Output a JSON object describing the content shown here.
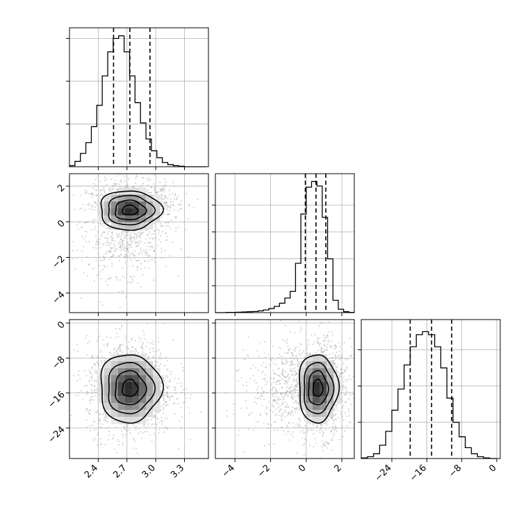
{
  "figure": {
    "background": "#ffffff",
    "grid": true,
    "grid_color": "#b0b0b0",
    "line_color": "#000000",
    "point_color": "#8c8c8c"
  },
  "chart_data": [
    {
      "type": "histogram",
      "panel": "p1-marginal",
      "xlim": [
        2.1,
        3.55
      ],
      "bins": [
        2.1,
        2.157,
        2.214,
        2.271,
        2.328,
        2.385,
        2.442,
        2.499,
        2.556,
        2.613,
        2.67,
        2.727,
        2.784,
        2.841,
        2.898,
        2.955,
        3.012,
        3.069,
        3.126,
        3.183,
        3.24,
        3.297,
        3.354,
        3.411,
        3.468,
        3.525
      ],
      "counts": [
        2,
        10,
        25,
        45,
        75,
        115,
        170,
        215,
        240,
        245,
        215,
        170,
        120,
        82,
        52,
        30,
        17,
        8,
        4,
        2,
        1,
        0,
        0,
        0,
        0
      ],
      "yticks": [
        80,
        160,
        240
      ],
      "ylim": [
        0,
        260
      ],
      "quantiles": [
        2.56,
        2.73,
        2.94
      ]
    },
    {
      "type": "histogram",
      "panel": "p2-marginal",
      "xlim": [
        -5.1,
        2.7
      ],
      "bins": [
        -5.1,
        -4.8,
        -4.5,
        -4.2,
        -3.9,
        -3.6,
        -3.3,
        -3.0,
        -2.7,
        -2.4,
        -2.1,
        -1.8,
        -1.5,
        -1.2,
        -0.9,
        -0.6,
        -0.3,
        0.0,
        0.3,
        0.6,
        0.9,
        1.2,
        1.5,
        1.8,
        2.1,
        2.4,
        2.7
      ],
      "counts": [
        0,
        0,
        1,
        1,
        2,
        3,
        4,
        5,
        8,
        12,
        18,
        28,
        42,
        65,
        95,
        220,
        440,
        560,
        585,
        565,
        425,
        240,
        55,
        15,
        4,
        1
      ],
      "yticks": [
        120,
        240,
        360,
        480
      ],
      "ylim": [
        0,
        620
      ],
      "quantiles": [
        -0.05,
        0.55,
        1.1
      ]
    },
    {
      "type": "histogram",
      "panel": "p3-marginal",
      "xlim": [
        -31,
        0.8
      ],
      "bins": [
        -31,
        -29.6,
        -28.2,
        -26.8,
        -25.4,
        -24.0,
        -22.6,
        -21.2,
        -19.8,
        -18.4,
        -17.0,
        -15.6,
        -14.2,
        -12.8,
        -11.4,
        -10.0,
        -8.6,
        -7.2,
        -5.8,
        -4.4,
        -3.0,
        -1.6,
        -0.2
      ],
      "counts": [
        1,
        3,
        8,
        22,
        45,
        80,
        115,
        155,
        185,
        205,
        210,
        205,
        185,
        150,
        100,
        60,
        36,
        18,
        8,
        3,
        1,
        0
      ],
      "yticks": [
        60,
        120,
        180
      ],
      "ylim": [
        0,
        230
      ],
      "quantiles": [
        -19.8,
        -14.9,
        -10.3
      ]
    },
    {
      "type": "scatter-contour",
      "panel": "p1-p2",
      "x": "p1",
      "y": "p2",
      "xlim": [
        2.1,
        3.55
      ],
      "ylim": [
        -5.1,
        2.7
      ],
      "center": [
        2.73,
        0.65
      ],
      "spread": [
        0.16,
        0.55
      ],
      "yticks": [
        2,
        0,
        -2,
        -4
      ],
      "ytick_labels": [
        "2",
        "0",
        "−2",
        "−4"
      ]
    },
    {
      "type": "scatter-contour",
      "panel": "p1-p3",
      "x": "p1",
      "y": "p3",
      "xlim": [
        2.1,
        3.55
      ],
      "ylim": [
        -31,
        0.8
      ],
      "center": [
        2.73,
        -14.9
      ],
      "spread": [
        0.16,
        3.9
      ],
      "xticks": [
        2.4,
        2.7,
        3.0,
        3.3
      ],
      "xtick_labels": [
        "2.4",
        "2.7",
        "3.0",
        "3.3"
      ],
      "yticks": [
        0,
        -8,
        -16,
        -24
      ],
      "ytick_labels": [
        "0",
        "−8",
        "−16",
        "−24"
      ]
    },
    {
      "type": "scatter-contour",
      "panel": "p2-p3",
      "x": "p2",
      "y": "p3",
      "xlim": [
        -5.1,
        2.7
      ],
      "ylim": [
        -31,
        0.8
      ],
      "center": [
        0.65,
        -14.9
      ],
      "spread": [
        0.55,
        3.9
      ],
      "xticks": [
        -4,
        -2,
        0,
        2
      ],
      "xtick_labels": [
        "−4",
        "−2",
        "0",
        "2"
      ]
    }
  ],
  "p3_xticks": [
    -24,
    -16,
    -8,
    0
  ],
  "p3_xtick_labels": [
    "−24",
    "−16",
    "−8",
    "0"
  ]
}
